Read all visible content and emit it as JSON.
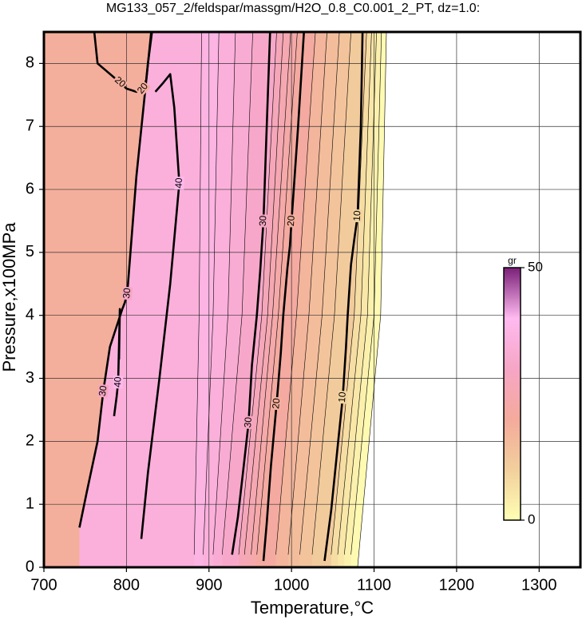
{
  "chart_data": {
    "type": "contour",
    "title": "MG133_057_2/feldspar/massgm/H2O_0.8_C0.001_2_PT, dz=1.0:",
    "x_label": "Temperature,°C",
    "y_label": "Pressure,x100MPa",
    "xlim": [
      700,
      1350
    ],
    "ylim": [
      0,
      8.5
    ],
    "xticks": [
      700,
      800,
      900,
      1000,
      1100,
      1200,
      1300
    ],
    "yticks": [
      0,
      1,
      2,
      3,
      4,
      5,
      6,
      7,
      8
    ],
    "grid": true,
    "colorbar": {
      "label": "gr",
      "clim": [
        0,
        50
      ],
      "ticks": [
        0,
        50
      ],
      "colors": [
        "#ffffb4",
        "#f2cf9c",
        "#f4aa9c",
        "#f6a6c6",
        "#ffbaf0",
        "#7a1f78"
      ]
    },
    "contours": [
      {
        "level": 20,
        "major": true,
        "x": [
          761,
          765,
          792,
          797,
          800
        ],
        "y": [
          8.5,
          8.0,
          7.7,
          7.64,
          7.6
        ]
      },
      {
        "level": 20,
        "major": true,
        "x": [
          800,
          812,
          820,
          824,
          826,
          831
        ],
        "y": [
          7.6,
          7.55,
          7.6,
          7.74,
          8.0,
          8.5
        ]
      },
      {
        "level": 30,
        "major": true,
        "x": [
          743,
          752,
          765,
          772,
          780,
          790,
          795
        ],
        "y": [
          0.63,
          1.2,
          2.0,
          2.8,
          3.5,
          3.9,
          4.1
        ]
      },
      {
        "level": 30,
        "major": true,
        "x": [
          795,
          798,
          801,
          812,
          830
        ],
        "y": [
          4.1,
          4.2,
          4.35,
          6.2,
          8.5
        ]
      },
      {
        "level": 40,
        "major": true,
        "x": [
          818,
          826,
          840,
          853,
          864,
          858,
          853,
          845,
          835
        ],
        "y": [
          0.45,
          1.5,
          3,
          4.5,
          6.1,
          7.3,
          7.83,
          7.7,
          7.55
        ]
      },
      {
        "level": 40,
        "major": true,
        "x": [
          785,
          788,
          790,
          792,
          791
        ],
        "y": [
          2.4,
          2.7,
          2.94,
          4.1,
          3.3
        ]
      },
      {
        "level": 30,
        "major": true,
        "x": [
          928,
          935,
          942,
          948,
          952,
          958,
          962
        ],
        "y": [
          0.2,
          0.8,
          1.6,
          2.3,
          3.2,
          4.0,
          4.7
        ]
      },
      {
        "level": 30,
        "major": true,
        "x": [
          962,
          964,
          966,
          970,
          974
        ],
        "y": [
          4.7,
          5.1,
          5.5,
          7.0,
          8.5
        ]
      },
      {
        "level": 20,
        "major": true,
        "x": [
          966,
          970,
          975,
          982,
          987,
          990,
          995
        ],
        "y": [
          0.1,
          0.7,
          1.6,
          2.6,
          3.4,
          4.0,
          4.75
        ]
      },
      {
        "level": 20,
        "major": true,
        "x": [
          995,
          998,
          1000,
          1008,
          1015
        ],
        "y": [
          4.75,
          5.1,
          5.5,
          7.0,
          8.5
        ]
      },
      {
        "level": 10,
        "major": true,
        "x": [
          1040,
          1048,
          1055,
          1062,
          1066,
          1068,
          1072
        ],
        "y": [
          0.1,
          0.9,
          1.8,
          2.7,
          3.5,
          4.0,
          4.8
        ]
      },
      {
        "level": 10,
        "major": true,
        "x": [
          1072,
          1076,
          1080,
          1084,
          1086
        ],
        "y": [
          4.8,
          5.2,
          5.58,
          7.0,
          8.5
        ]
      },
      {
        "level": 38,
        "major": false,
        "x": [
          882,
          888,
          891
        ],
        "y": [
          0.2,
          4,
          8.5
        ]
      },
      {
        "level": 36,
        "major": false,
        "x": [
          893,
          905,
          912
        ],
        "y": [
          0.2,
          4,
          8.5
        ]
      },
      {
        "level": 34,
        "major": false,
        "x": [
          905,
          923,
          932
        ],
        "y": [
          0.2,
          4,
          8.5
        ]
      },
      {
        "level": 32,
        "major": false,
        "x": [
          916,
          940,
          953
        ],
        "y": [
          0.2,
          4,
          8.5
        ]
      },
      {
        "level": 28,
        "major": false,
        "x": [
          936,
          964,
          982
        ],
        "y": [
          0.2,
          4,
          8.5
        ]
      },
      {
        "level": 26,
        "major": false,
        "x": [
          943,
          971,
          990
        ],
        "y": [
          0.2,
          4,
          8.5
        ]
      },
      {
        "level": 24,
        "major": false,
        "x": [
          951,
          977,
          999
        ],
        "y": [
          0.2,
          4,
          8.5
        ]
      },
      {
        "level": 22,
        "major": false,
        "x": [
          958,
          984,
          1007
        ],
        "y": [
          0.2,
          4,
          8.5
        ]
      },
      {
        "level": 18,
        "major": false,
        "x": [
          981,
          1006,
          1029
        ],
        "y": [
          0.2,
          4,
          8.5
        ]
      },
      {
        "level": 16,
        "major": false,
        "x": [
          996,
          1021,
          1043
        ],
        "y": [
          0.2,
          4,
          8.5
        ]
      },
      {
        "level": 14,
        "major": false,
        "x": [
          1010,
          1037,
          1058
        ],
        "y": [
          0.2,
          4,
          8.5
        ]
      },
      {
        "level": 12,
        "major": false,
        "x": [
          1025,
          1052,
          1072
        ],
        "y": [
          0.2,
          4,
          8.5
        ]
      },
      {
        "level": 8,
        "major": false,
        "x": [
          1048,
          1076,
          1091
        ],
        "y": [
          0.2,
          4,
          8.5
        ]
      },
      {
        "level": 6,
        "major": false,
        "x": [
          1056,
          1084,
          1097
        ],
        "y": [
          0.2,
          4,
          8.5
        ]
      },
      {
        "level": 4,
        "major": false,
        "x": [
          1064,
          1092,
          1103
        ],
        "y": [
          0.2,
          4,
          8.5
        ]
      },
      {
        "level": 2,
        "major": false,
        "x": [
          1072,
          1100,
          1109
        ],
        "y": [
          0.2,
          4,
          8.5
        ]
      },
      {
        "level": 0,
        "major": false,
        "x": [
          1080,
          1108,
          1115
        ],
        "y": [
          0,
          4,
          8.5
        ]
      }
    ]
  }
}
